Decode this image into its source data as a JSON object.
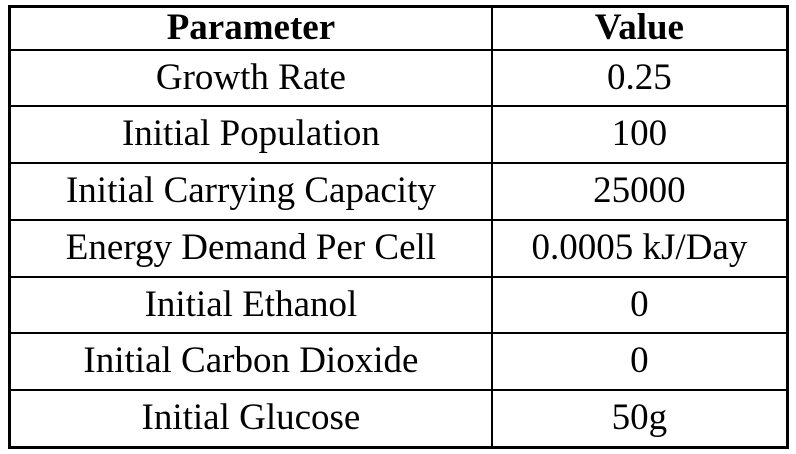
{
  "table": {
    "headers": [
      "Parameter",
      "Value"
    ],
    "rows": [
      {
        "parameter": "Growth Rate",
        "value": "0.25"
      },
      {
        "parameter": "Initial Population",
        "value": "100"
      },
      {
        "parameter": "Initial Carrying Capacity",
        "value": "25000"
      },
      {
        "parameter": "Energy Demand Per Cell",
        "value": "0.0005 kJ/Day"
      },
      {
        "parameter": "Initial Ethanol",
        "value": "0"
      },
      {
        "parameter": "Initial Carbon Dioxide",
        "value": "0"
      },
      {
        "parameter": "Initial Glucose",
        "value": "50g"
      }
    ],
    "colors": {
      "border": "#000000",
      "text": "#000000",
      "background": "#ffffff"
    }
  }
}
